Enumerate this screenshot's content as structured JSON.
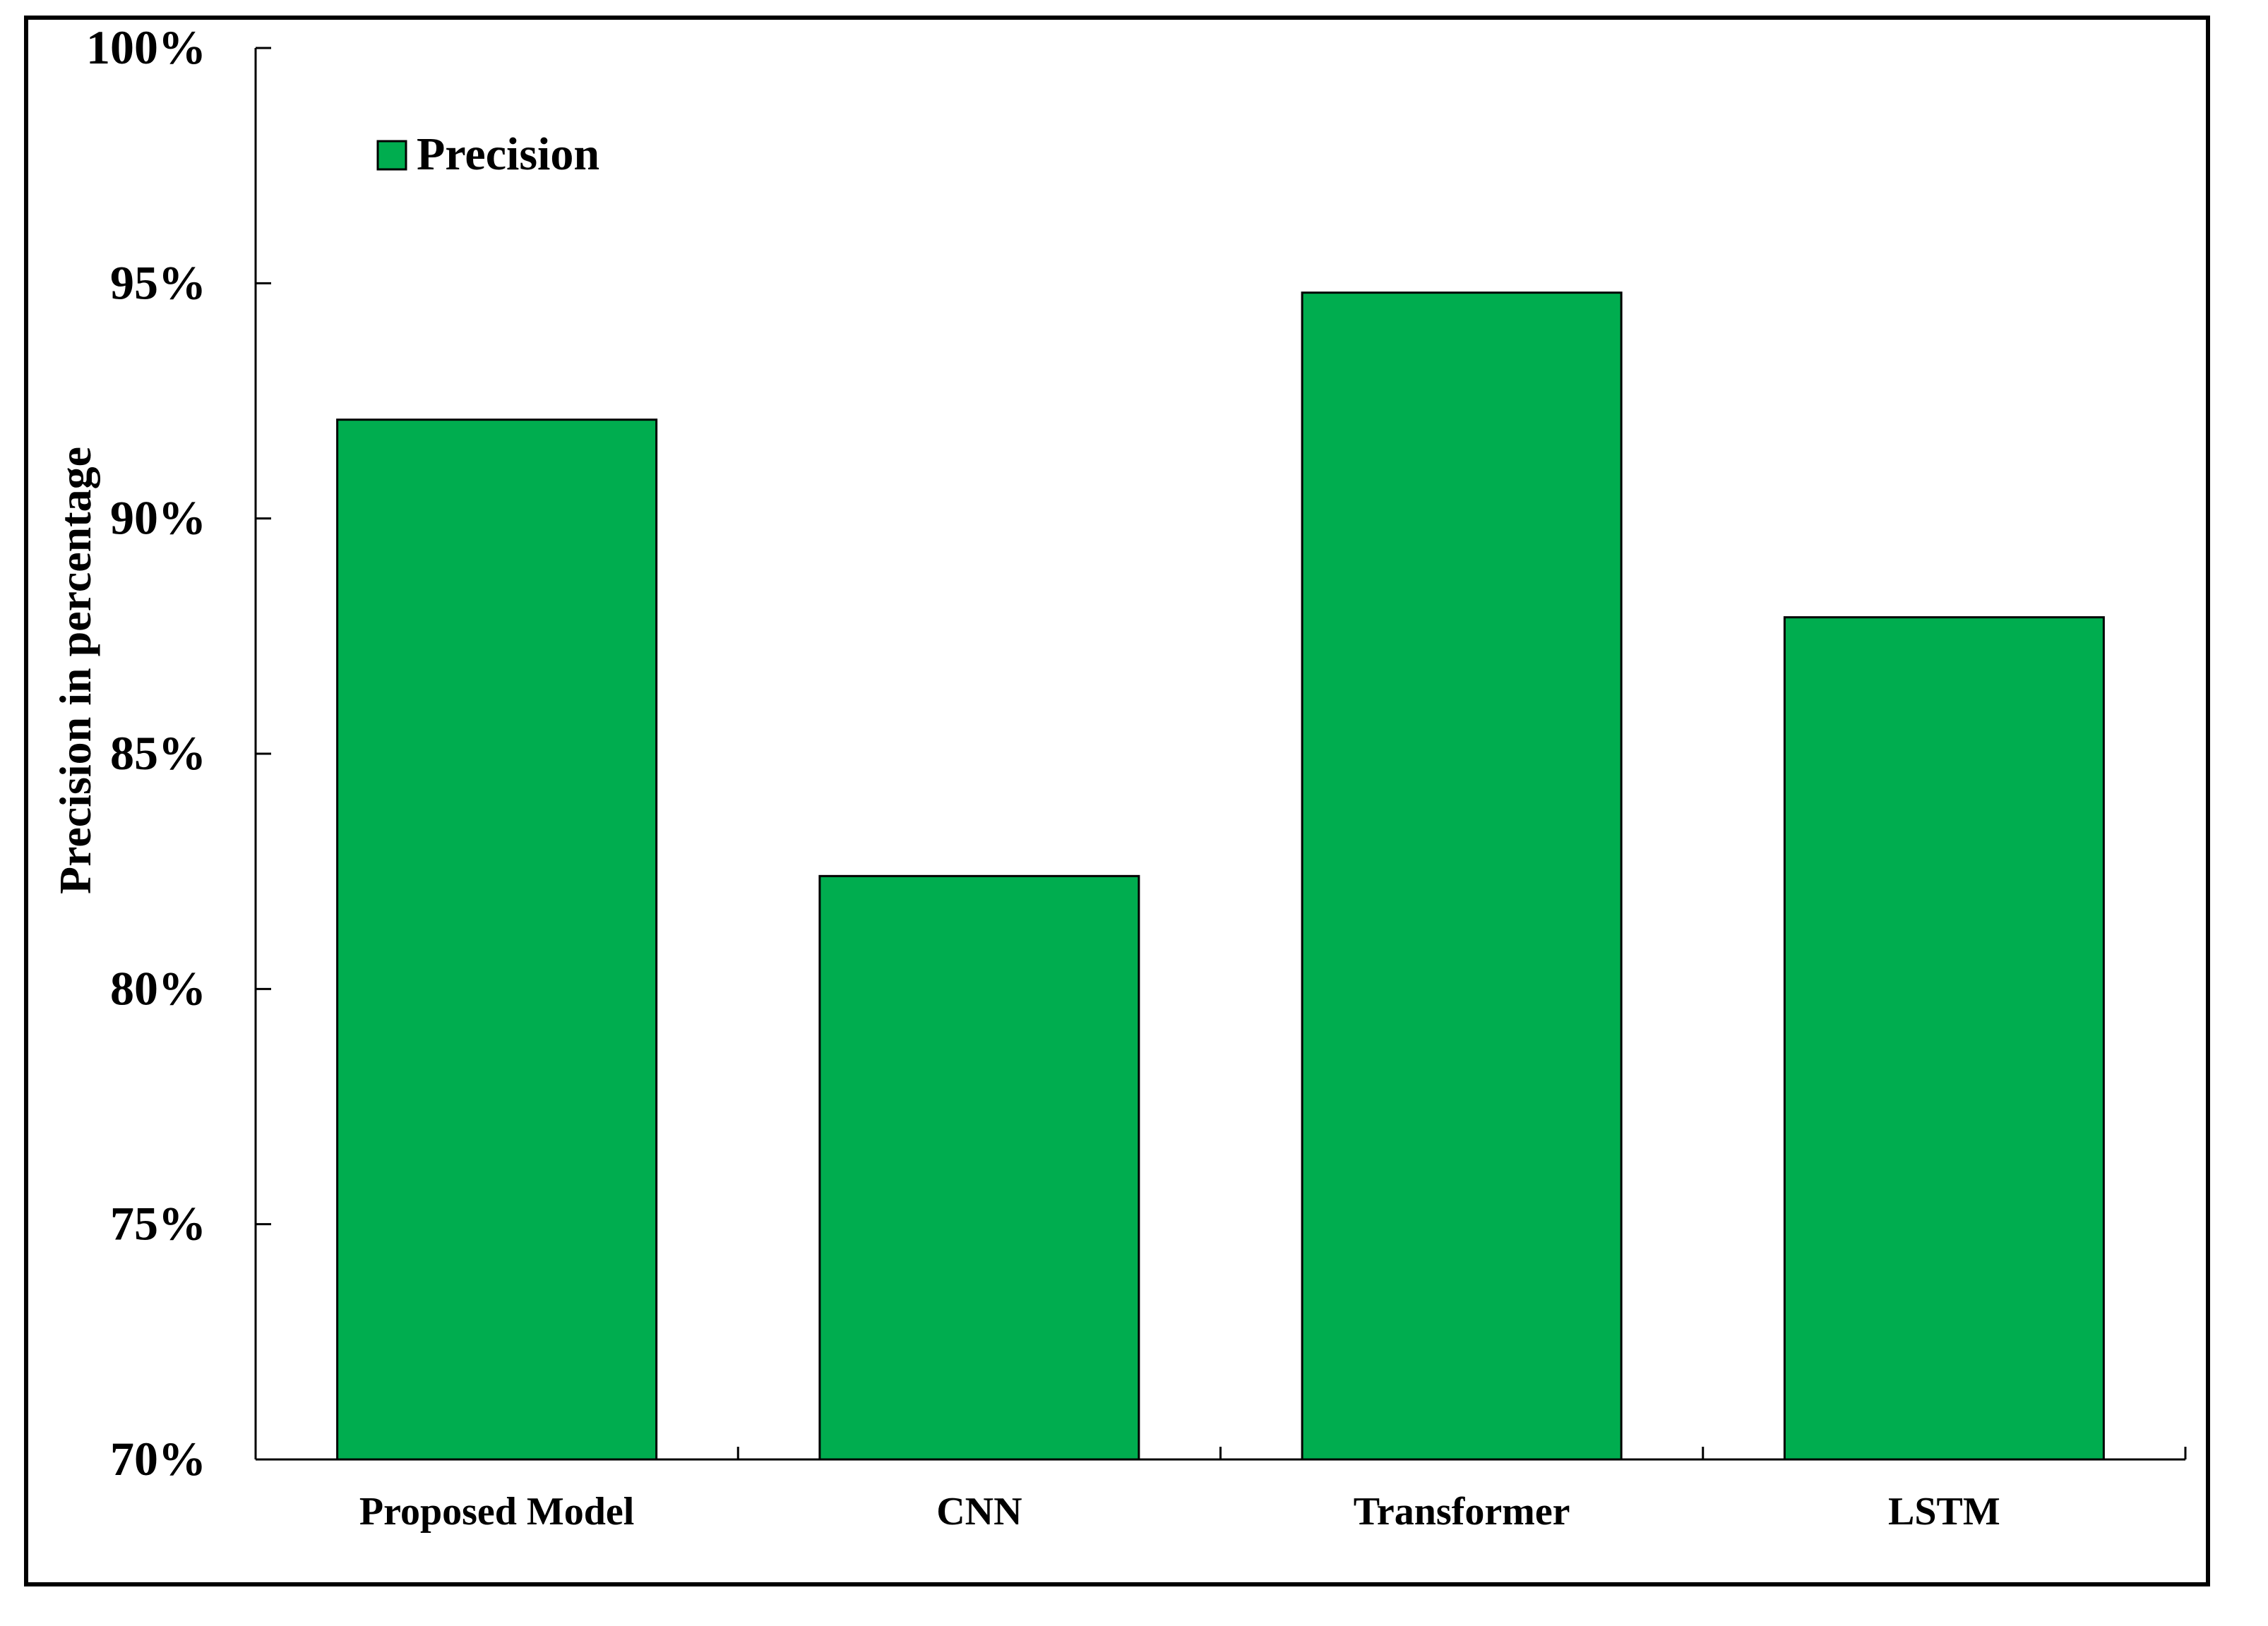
{
  "chart_data": {
    "type": "bar",
    "title": "",
    "xlabel": "",
    "ylabel": "Precision in percentage",
    "categories": [
      "Proposed Model",
      "CNN",
      "Transformer",
      "LSTM"
    ],
    "series": [
      {
        "name": "Precision",
        "values": [
          92.1,
          82.4,
          94.8,
          87.9
        ]
      }
    ],
    "ylim": [
      70,
      100
    ],
    "yticks": [
      70,
      75,
      80,
      85,
      90,
      95,
      100
    ],
    "ytick_labels": [
      "70%",
      "75%",
      "80%",
      "85%",
      "90%",
      "95%",
      "100%"
    ],
    "grid": false,
    "legend_position": "top-left",
    "colors": {
      "bar": "#00ad4f",
      "axis": "#000000",
      "background": "#ffffff"
    }
  }
}
